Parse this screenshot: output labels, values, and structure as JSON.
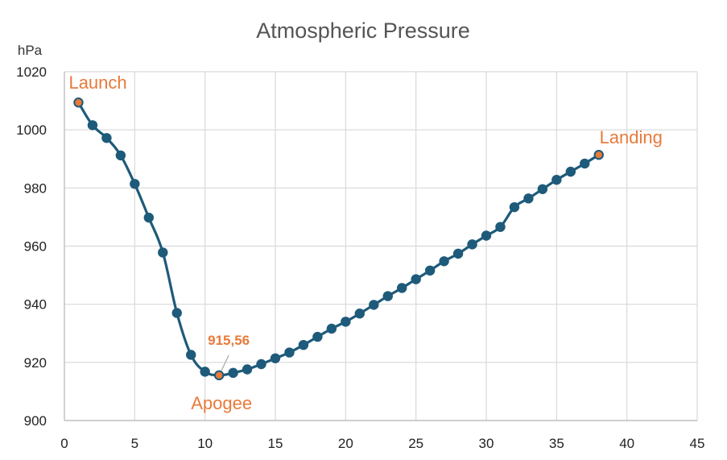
{
  "chart_data": {
    "type": "line",
    "title": "Atmospheric Pressure",
    "ylabel": "hPa",
    "xlabel": "",
    "xlim": [
      0,
      45
    ],
    "ylim": [
      900,
      1020
    ],
    "x_ticks": [
      0,
      5,
      10,
      15,
      20,
      25,
      30,
      35,
      40,
      45
    ],
    "y_ticks": [
      900,
      920,
      940,
      960,
      980,
      1000,
      1020
    ],
    "grid": true,
    "line_color": "#1e5a7a",
    "highlight_color": "#e87a3a",
    "series": [
      {
        "x": [
          1,
          2,
          3,
          4,
          5,
          6,
          7,
          8,
          9,
          10,
          11,
          12,
          13,
          14,
          15,
          16,
          17,
          18,
          19,
          20,
          21,
          22,
          23,
          24,
          25,
          26,
          27,
          28,
          29,
          30,
          31,
          32,
          33,
          34,
          35,
          36,
          37,
          38
        ],
        "y": [
          1009.4,
          1001.6,
          997.2,
          991.2,
          981.4,
          969.8,
          957.8,
          937.0,
          922.6,
          916.8,
          915.56,
          916.4,
          917.6,
          919.4,
          921.4,
          923.4,
          926.0,
          928.8,
          931.6,
          934.0,
          936.8,
          939.8,
          942.8,
          945.6,
          948.6,
          951.6,
          954.8,
          957.4,
          960.6,
          963.6,
          966.6,
          973.4,
          976.4,
          979.6,
          982.8,
          985.6,
          988.4,
          991.4
        ]
      }
    ],
    "annotations": [
      {
        "label": "Launch",
        "x": 1,
        "y": 1009.4
      },
      {
        "label": "Apogee",
        "x": 11,
        "y": 915.56
      },
      {
        "label": "Landing",
        "x": 38,
        "y": 991.4
      }
    ],
    "data_label": "915,56"
  }
}
